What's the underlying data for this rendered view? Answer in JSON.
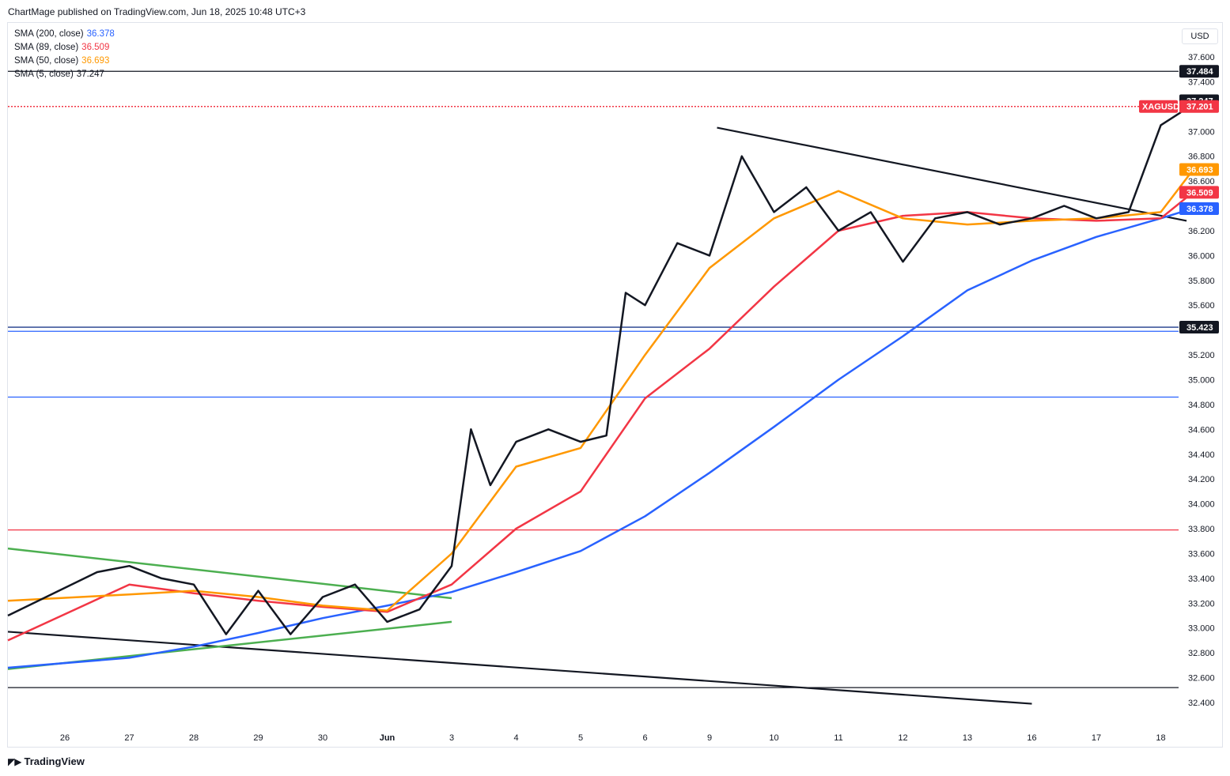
{
  "header": {
    "publisher": "ChartMage published on TradingView.com, Jun 18, 2025 10:48 UTC+3"
  },
  "currency_label": "USD",
  "footer": {
    "brand": "TradingView"
  },
  "legend": [
    {
      "name": "SMA (200, close)",
      "value": "36.378",
      "color": "#2962ff"
    },
    {
      "name": "SMA (89, close)",
      "value": "36.509",
      "color": "#f23645"
    },
    {
      "name": "SMA (50, close)",
      "value": "36.693",
      "color": "#ff9800"
    },
    {
      "name": "SMA (5, close)",
      "value": "37.247",
      "color": "#131722"
    }
  ],
  "chart_data": {
    "type": "line",
    "symbol": "XAGUSD",
    "ylim": [
      32.2,
      37.8
    ],
    "y_ticks": [
      32.4,
      32.6,
      32.8,
      33.0,
      33.2,
      33.4,
      33.6,
      33.8,
      34.0,
      34.2,
      34.4,
      34.6,
      34.8,
      35.0,
      35.2,
      35.4,
      35.6,
      35.8,
      36.0,
      36.2,
      36.4,
      36.6,
      36.8,
      37.0,
      37.2,
      37.4,
      37.6
    ],
    "x_ticks": [
      "26",
      "27",
      "28",
      "29",
      "30",
      "Jun",
      "3",
      "4",
      "5",
      "6",
      "9",
      "10",
      "11",
      "12",
      "13",
      "16",
      "17",
      "18"
    ],
    "grid": false,
    "legend_position": "top-left",
    "price_tags": [
      {
        "label": "37.484",
        "value": 37.484,
        "color": "#131722"
      },
      {
        "label": "37.247",
        "value": 37.247,
        "color": "#131722"
      },
      {
        "label": "37.201",
        "value": 37.201,
        "color": "#f23645"
      },
      {
        "label": "36.693",
        "value": 36.693,
        "color": "#ff9800"
      },
      {
        "label": "36.509",
        "value": 36.509,
        "color": "#f23645"
      },
      {
        "label": "36.378",
        "value": 36.378,
        "color": "#2962ff"
      },
      {
        "label": "35.423",
        "value": 35.423,
        "color": "#131722"
      }
    ],
    "horizontal_levels": [
      {
        "value": 37.484,
        "color": "#131722"
      },
      {
        "value": 37.201,
        "color": "#f23645",
        "style": "dotted"
      },
      {
        "value": 35.423,
        "color": "#1e3a8a"
      },
      {
        "value": 35.39,
        "color": "#2962ff"
      },
      {
        "value": 34.86,
        "color": "#2962ff"
      },
      {
        "value": 33.79,
        "color": "#f23645"
      },
      {
        "value": 32.52,
        "color": "#131722"
      }
    ],
    "trendlines": [
      {
        "color": "#131722",
        "from": [
          0.0,
          32.97
        ],
        "to": [
          15.0,
          32.39
        ]
      },
      {
        "color": "#4caf50",
        "from": [
          0.0,
          33.64
        ],
        "to": [
          6.0,
          33.24
        ]
      },
      {
        "color": "#4caf50",
        "from": [
          0.0,
          32.67
        ],
        "to": [
          6.0,
          33.05
        ]
      },
      {
        "color": "#131722",
        "from": [
          11.0,
          37.03
        ],
        "to": [
          17.4,
          36.28
        ]
      }
    ],
    "series": [
      {
        "name": "SMA (200, close)",
        "color": "#2962ff",
        "x": [
          0,
          1,
          2,
          3,
          4,
          5,
          6,
          7,
          8,
          9,
          10,
          11,
          12,
          13,
          14,
          15,
          16,
          17,
          17.5
        ],
        "values": [
          32.68,
          32.76,
          32.85,
          32.96,
          33.08,
          33.18,
          33.29,
          33.45,
          33.62,
          33.9,
          34.25,
          34.62,
          35.0,
          35.35,
          35.72,
          35.96,
          36.15,
          36.3,
          36.38
        ]
      },
      {
        "name": "SMA (89, close)",
        "color": "#f23645",
        "x": [
          0,
          1,
          2,
          3,
          4,
          5,
          6,
          7,
          8,
          9,
          10,
          11,
          12,
          13,
          14,
          15,
          16,
          17,
          17.5
        ],
        "values": [
          32.9,
          33.35,
          33.28,
          33.22,
          33.17,
          33.13,
          33.35,
          33.8,
          34.1,
          34.85,
          35.25,
          35.75,
          36.2,
          36.32,
          36.35,
          36.3,
          36.28,
          36.3,
          36.51
        ]
      },
      {
        "name": "SMA (50, close)",
        "color": "#ff9800",
        "x": [
          0,
          1,
          2,
          3,
          4,
          5,
          6,
          7,
          8,
          9,
          10,
          11,
          12,
          13,
          14,
          15,
          16,
          17,
          17.5
        ],
        "values": [
          33.22,
          33.27,
          33.3,
          33.25,
          33.18,
          33.14,
          33.6,
          34.3,
          34.45,
          35.2,
          35.9,
          36.3,
          36.52,
          36.3,
          36.25,
          36.28,
          36.3,
          36.35,
          36.69
        ]
      },
      {
        "name": "SMA (5, close)",
        "color": "#131722",
        "x": [
          0,
          0.5,
          1,
          1.5,
          2,
          2.5,
          3,
          3.5,
          4,
          4.5,
          5,
          5.5,
          6,
          6.3,
          6.6,
          7,
          7.5,
          8,
          8.4,
          8.7,
          9,
          9.5,
          10,
          10.5,
          11,
          11.5,
          12,
          12.5,
          13,
          13.5,
          14,
          14.5,
          15,
          15.5,
          16,
          16.5,
          17,
          17.3,
          17.5
        ],
        "values": [
          33.1,
          33.45,
          33.5,
          33.4,
          33.35,
          32.95,
          33.3,
          32.95,
          33.25,
          33.35,
          33.05,
          33.15,
          33.5,
          34.6,
          34.15,
          34.5,
          34.6,
          34.5,
          34.55,
          35.7,
          35.6,
          36.1,
          36.0,
          36.8,
          36.35,
          36.55,
          36.2,
          36.35,
          35.95,
          36.3,
          36.35,
          36.25,
          36.3,
          36.4,
          36.3,
          36.35,
          37.05,
          37.15,
          37.25
        ]
      }
    ]
  }
}
